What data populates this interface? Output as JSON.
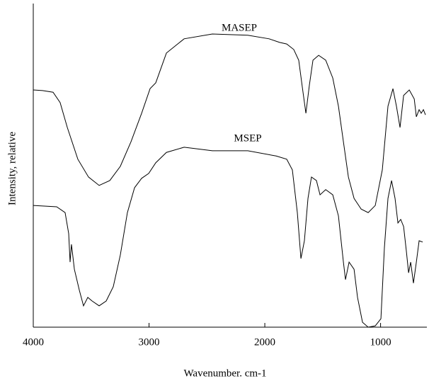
{
  "chart_data": {
    "type": "line",
    "xlabel": "Wavenumber. cm-1",
    "ylabel": "Intensity, relative",
    "xlim": [
      4000,
      600
    ],
    "xticks": [
      4000,
      3000,
      2000,
      1000
    ],
    "ylim": [
      0,
      100
    ],
    "annotations": [
      "MASEP",
      "MSEP"
    ],
    "series": [
      {
        "name": "MASEP",
        "color": "#000000",
        "x": [
          4000,
          3920,
          3829,
          3768,
          3706,
          3615,
          3523,
          3431,
          3339,
          3248,
          3156,
          3064,
          2991,
          2942,
          2905,
          2850,
          2697,
          2453,
          2147,
          1963,
          1872,
          1811,
          1750,
          1707,
          1670,
          1645,
          1615,
          1584,
          1535,
          1474,
          1413,
          1364,
          1321,
          1278,
          1229,
          1168,
          1107,
          1046,
          985,
          936,
          893,
          863,
          832,
          801,
          752,
          709,
          691,
          667,
          649,
          630,
          612
        ],
        "values": [
          73.3,
          73.1,
          72.6,
          69.4,
          61.7,
          51.9,
          46.4,
          43.8,
          45.3,
          49.7,
          57.3,
          66.1,
          73.7,
          75.5,
          79.2,
          84.7,
          89.1,
          90.6,
          90.2,
          89.1,
          88.0,
          87.5,
          85.8,
          82.5,
          72.6,
          66.1,
          74.8,
          82.5,
          84.0,
          82.5,
          77.0,
          68.3,
          57.3,
          46.4,
          39.8,
          36.5,
          35.4,
          37.6,
          48.6,
          68.3,
          73.7,
          68.3,
          61.7,
          71.6,
          73.3,
          70.5,
          65.0,
          67.2,
          66.1,
          67.2,
          65.6
        ]
      },
      {
        "name": "MSEP",
        "color": "#000000",
        "x": [
          4000,
          3798,
          3725,
          3694,
          3682,
          3670,
          3645,
          3602,
          3566,
          3529,
          3492,
          3431,
          3370,
          3309,
          3248,
          3187,
          3125,
          3064,
          3003,
          2942,
          2850,
          2697,
          2453,
          2147,
          1902,
          1811,
          1762,
          1719,
          1688,
          1658,
          1627,
          1597,
          1554,
          1523,
          1474,
          1413,
          1364,
          1321,
          1303,
          1272,
          1229,
          1199,
          1156,
          1107,
          1046,
          997,
          967,
          936,
          905,
          875,
          850,
          826,
          801,
          777,
          758,
          740,
          716,
          691,
          667,
          636
        ],
        "values": [
          37.6,
          37.2,
          35.4,
          28.9,
          20.1,
          25.6,
          17.9,
          11.4,
          6.6,
          9.2,
          8.1,
          6.6,
          8.1,
          12.5,
          22.3,
          35.4,
          43.1,
          46.0,
          47.5,
          50.8,
          54.0,
          55.6,
          54.5,
          54.5,
          52.9,
          51.9,
          48.6,
          35.4,
          21.2,
          26.7,
          39.8,
          46.4,
          45.3,
          40.9,
          42.5,
          40.9,
          34.4,
          20.1,
          14.7,
          20.1,
          17.9,
          9.2,
          1.5,
          0.0,
          0.4,
          2.6,
          24.5,
          39.8,
          45.3,
          39.8,
          32.2,
          33.3,
          31.1,
          23.4,
          16.8,
          20.1,
          13.6,
          20.1,
          26.7,
          26.3
        ]
      }
    ]
  }
}
